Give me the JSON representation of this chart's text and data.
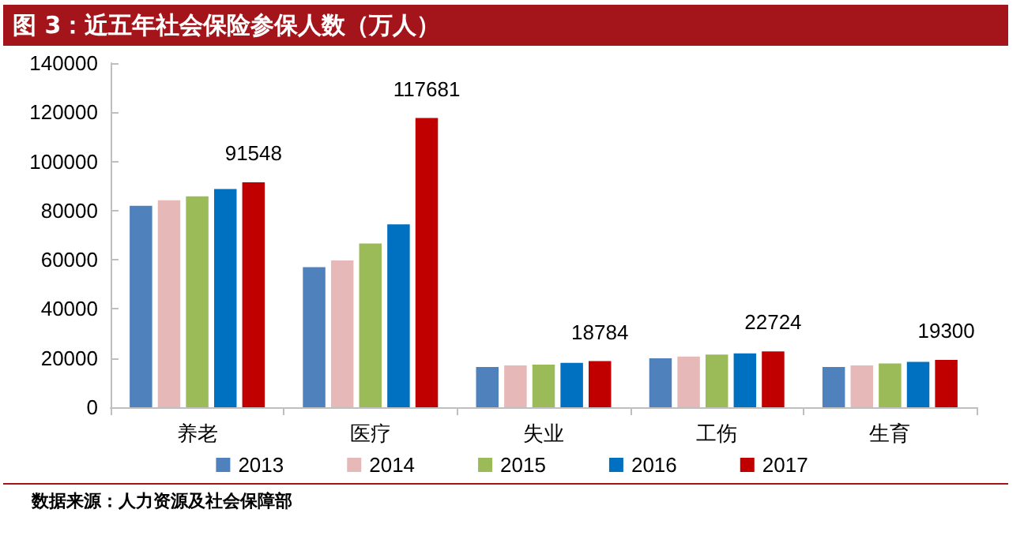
{
  "chart_data": {
    "type": "bar",
    "title": "图 3：近五年社会保险参保人数（万人）",
    "categories": [
      "养老",
      "医疗",
      "失业",
      "工伤",
      "生育"
    ],
    "series": [
      {
        "name": "2013",
        "color": "#4f81bd",
        "values": [
          82000,
          57000,
          16400,
          19900,
          16400
        ]
      },
      {
        "name": "2014",
        "color": "#e6b9b8",
        "values": [
          84200,
          59700,
          17000,
          20600,
          17000
        ]
      },
      {
        "name": "2015",
        "color": "#9bbb59",
        "values": [
          85800,
          66600,
          17300,
          21400,
          17800
        ]
      },
      {
        "name": "2016",
        "color": "#0070c0",
        "values": [
          88800,
          74400,
          18100,
          21900,
          18500
        ]
      },
      {
        "name": "2017",
        "color": "#c00000",
        "values": [
          91548,
          117681,
          18784,
          22724,
          19300
        ],
        "value_labels": [
          "91548",
          "117681",
          "18784",
          "22724",
          "19300"
        ]
      }
    ],
    "ylim": [
      0,
      140000
    ],
    "yticks": [
      0,
      20000,
      40000,
      60000,
      80000,
      100000,
      120000,
      140000
    ],
    "grid": false,
    "legend": "bottom",
    "annotations": [
      "数据来源：人力资源及社会保障部"
    ]
  }
}
